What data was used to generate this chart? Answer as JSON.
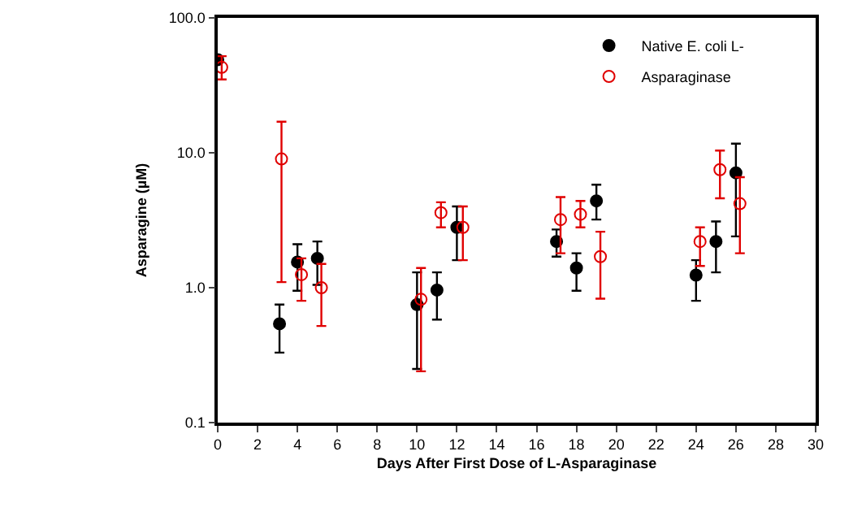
{
  "chart_data": {
    "type": "scatter",
    "xlabel": "Days After First Dose of L-Asparaginase",
    "ylabel": "Asparagine (µM)",
    "series": [
      {
        "name": "Native E. coli L-",
        "color": "#000000",
        "x": [
          0,
          3.1,
          4,
          5,
          10,
          11,
          12,
          17,
          18,
          19,
          24,
          25,
          26
        ],
        "values": [
          49,
          0.54,
          1.55,
          1.65,
          0.75,
          0.96,
          2.8,
          2.2,
          1.4,
          4.4,
          1.24,
          2.2,
          7.1
        ],
        "errors": [
          null,
          [
            0.33,
            0.75
          ],
          [
            0.95,
            2.1
          ],
          [
            1.05,
            2.2
          ],
          [
            0.25,
            1.3
          ],
          [
            0.58,
            1.3
          ],
          [
            1.6,
            4.0
          ],
          [
            1.7,
            2.7
          ],
          [
            0.95,
            1.8
          ],
          [
            3.2,
            5.8
          ],
          [
            0.8,
            1.6
          ],
          [
            1.3,
            3.1
          ],
          [
            2.4,
            11.7
          ]
        ]
      },
      {
        "name": "Asparaginase",
        "color": "#e00000",
        "x": [
          0.2,
          3.2,
          4.2,
          5.2,
          10.2,
          11.2,
          12.3,
          17.2,
          18.2,
          19.2,
          24.2,
          25.2,
          26.2
        ],
        "values": [
          43,
          9.0,
          1.25,
          1.0,
          0.82,
          3.6,
          2.8,
          3.2,
          3.5,
          1.7,
          2.2,
          7.5,
          4.2
        ],
        "errors": [
          [
            35,
            52
          ],
          [
            1.1,
            17
          ],
          [
            0.8,
            1.65
          ],
          [
            0.52,
            1.5
          ],
          [
            0.24,
            1.4
          ],
          [
            2.8,
            4.3
          ],
          [
            1.6,
            4.0
          ],
          [
            1.8,
            4.7
          ],
          [
            2.8,
            4.4
          ],
          [
            0.83,
            2.6
          ],
          [
            1.45,
            2.8
          ],
          [
            4.6,
            10.4
          ],
          [
            1.8,
            6.6
          ]
        ]
      }
    ],
    "xlim": [
      0,
      30
    ],
    "xticks": [
      0,
      2,
      4,
      6,
      8,
      10,
      12,
      14,
      16,
      18,
      20,
      22,
      24,
      26,
      28,
      30
    ],
    "ylim": [
      0.1,
      100
    ],
    "yticks": [
      {
        "value": 0.1,
        "label": "0.1"
      },
      {
        "value": 1,
        "label": "1.0"
      },
      {
        "value": 10,
        "label": "10.0"
      },
      {
        "value": 100,
        "label": "100.0"
      }
    ],
    "log": "y",
    "legend": "top right",
    "marker": "circle"
  }
}
